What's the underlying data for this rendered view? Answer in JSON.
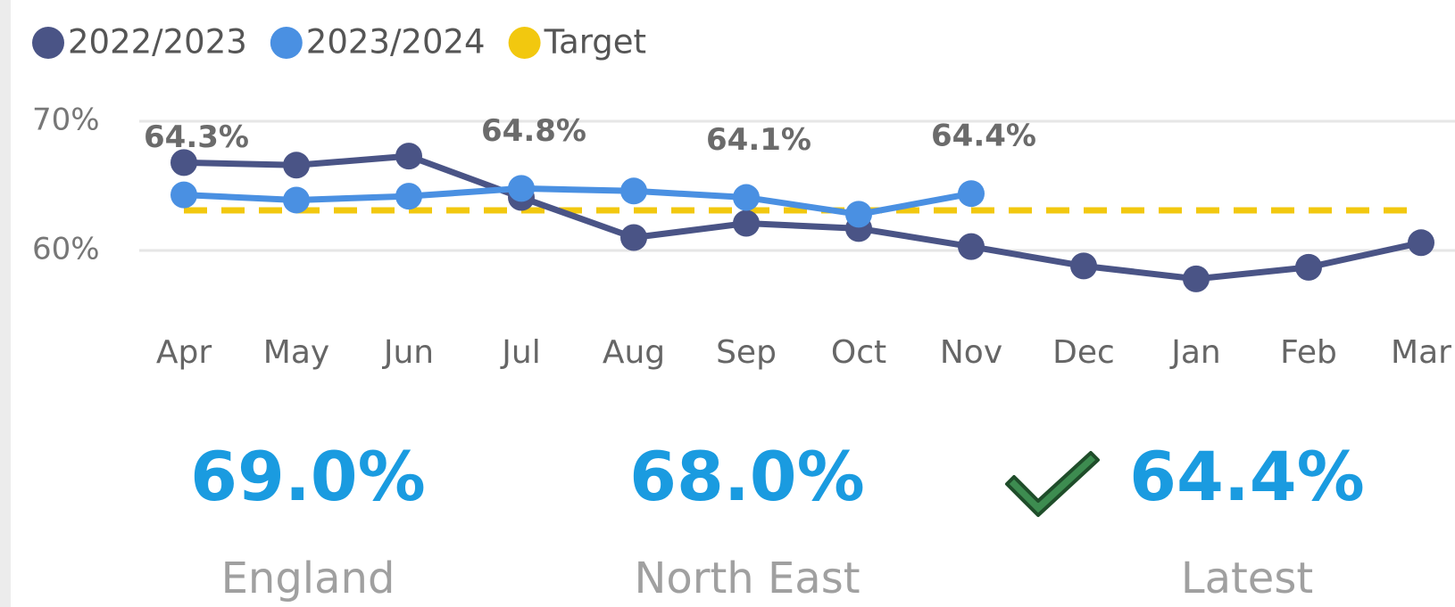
{
  "chart_data": {
    "type": "line",
    "categories": [
      "Apr",
      "May",
      "Jun",
      "Jul",
      "Aug",
      "Sep",
      "Oct",
      "Nov",
      "Dec",
      "Jan",
      "Feb",
      "Mar"
    ],
    "series": [
      {
        "name": "2022/2023",
        "color": "#4a5486",
        "values": [
          66.8,
          66.6,
          67.3,
          64.1,
          61.0,
          62.1,
          61.7,
          60.3,
          58.8,
          57.8,
          58.7,
          60.6
        ]
      },
      {
        "name": "2023/2024",
        "color": "#4a90e2",
        "values": [
          64.3,
          63.9,
          64.2,
          64.8,
          64.6,
          64.1,
          62.8,
          64.4,
          null,
          null,
          null,
          null
        ],
        "value_labels": [
          "64.3%",
          null,
          null,
          "64.8%",
          null,
          "64.1%",
          null,
          "64.4%",
          null,
          null,
          null,
          null
        ]
      }
    ],
    "target": {
      "name": "Target",
      "color": "#f2c80f",
      "value": 63.1
    },
    "ylim": [
      55,
      71
    ],
    "yticks": [
      {
        "value": 60,
        "label": "60%"
      },
      {
        "value": 70,
        "label": "70%"
      }
    ],
    "grid": true
  },
  "cards": [
    {
      "value": "69.0%",
      "label": "England"
    },
    {
      "value": "68.0%",
      "label": "North East"
    },
    {
      "value": "64.4%",
      "label": "Latest",
      "check": true
    }
  ]
}
